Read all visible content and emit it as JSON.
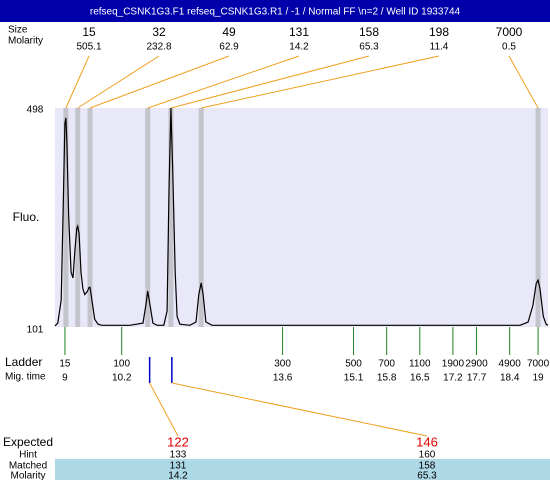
{
  "window_title": "refseq_CSNK1G3.F1  refseq_CSNK1G3.R1 / -1 / Normal FF \\n=2 / Well ID 1933744",
  "chart_data": {
    "type": "electropherogram",
    "y_label": "Fluo.",
    "ylim": [
      101,
      498
    ],
    "yticks": [
      101,
      498
    ],
    "xlim": [
      8.79,
      19.21
    ],
    "peaks": {
      "size_label": "Size",
      "molarity_label": "Molarity",
      "sizes": [
        15,
        32,
        49,
        131,
        158,
        198,
        7000
      ],
      "molarity": [
        505.1,
        232.8,
        62.9,
        14.2,
        65.3,
        11.4,
        0.5
      ],
      "times": [
        9.02,
        9.27,
        9.53,
        10.75,
        11.24,
        11.88,
        19.0
      ]
    },
    "ladder": {
      "label": "Ladder",
      "time_label": "Mig. time",
      "sizes": [
        15,
        100,
        300,
        500,
        700,
        1100,
        1900,
        2900,
        4900,
        7000
      ],
      "times": [
        9,
        10.2,
        13.6,
        15.1,
        15.8,
        16.5,
        17.2,
        17.7,
        18.4,
        19
      ]
    },
    "trace": {
      "x": [
        8.79,
        8.85,
        8.92,
        8.96,
        9.0,
        9.02,
        9.04,
        9.08,
        9.13,
        9.17,
        9.21,
        9.25,
        9.27,
        9.3,
        9.34,
        9.38,
        9.42,
        9.47,
        9.51,
        9.53,
        9.57,
        9.63,
        9.7,
        9.78,
        10.37,
        10.65,
        10.71,
        10.75,
        10.8,
        10.86,
        10.95,
        11.09,
        11.16,
        11.2,
        11.24,
        11.28,
        11.33,
        11.37,
        11.43,
        11.64,
        11.77,
        11.83,
        11.88,
        11.92,
        11.98,
        12.11,
        18.62,
        18.79,
        18.89,
        18.96,
        19.0,
        19.04,
        19.11,
        19.17,
        19.21
      ],
      "values": [
        103,
        108,
        150,
        300,
        470,
        480,
        440,
        300,
        200,
        190,
        240,
        280,
        284,
        270,
        200,
        170,
        160,
        165,
        173,
        173,
        150,
        115,
        106,
        104,
        104,
        108,
        140,
        166,
        140,
        108,
        104,
        104,
        130,
        350,
        498,
        380,
        200,
        120,
        106,
        104,
        110,
        160,
        181,
        160,
        110,
        104,
        104,
        110,
        140,
        180,
        186,
        170,
        120,
        106,
        104
      ]
    },
    "expected": {
      "labels": [
        "Expected",
        "Hint",
        "Matched",
        "Molarity"
      ],
      "expected": [
        122,
        146
      ],
      "times": [
        10.79,
        11.26
      ],
      "hint": [
        133,
        160
      ],
      "matched": [
        131,
        158
      ],
      "molarity": [
        14.2,
        65.3
      ]
    }
  }
}
